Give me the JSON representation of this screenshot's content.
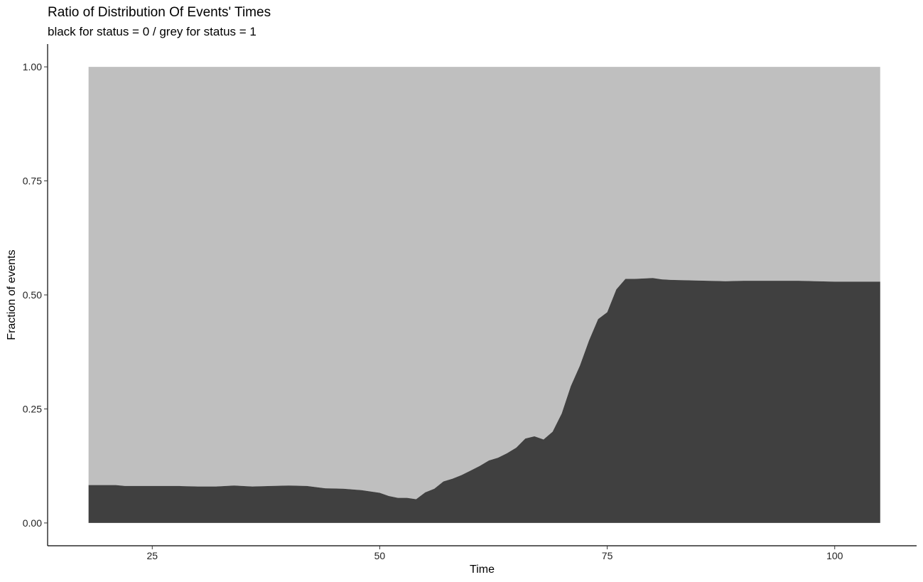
{
  "chart_data": {
    "type": "area",
    "stacking": "fill",
    "title": "Ratio of Distribution Of Events' Times",
    "subtitle": "black for status = 0 / grey for status = 1",
    "xlabel": "Time",
    "ylabel": "Fraction of events",
    "xlim": [
      13.5,
      109
    ],
    "ylim": [
      -0.05,
      1.05
    ],
    "x_ticks": [
      25,
      50,
      75,
      100
    ],
    "x_tick_labels": [
      "25",
      "50",
      "75",
      "100"
    ],
    "y_ticks": [
      0,
      0.25,
      0.5,
      0.75,
      1.0
    ],
    "y_tick_labels": [
      "0.00",
      "0.25",
      "0.50",
      "0.75",
      "1.00"
    ],
    "grid": false,
    "legend": "none",
    "colors": {
      "status_0": "#404040",
      "status_1": "#bfbfbf"
    },
    "x": [
      18,
      21,
      22,
      24,
      26,
      28,
      30,
      32,
      34,
      36,
      38,
      40,
      42,
      44,
      46,
      48,
      50,
      51,
      52,
      53,
      54,
      55,
      56,
      57,
      58,
      59,
      60,
      61,
      62,
      63,
      64,
      65,
      66,
      67,
      68,
      69,
      70,
      71,
      72,
      73,
      74,
      75,
      76,
      77,
      78,
      80,
      81,
      82,
      84,
      86,
      88,
      90,
      92,
      94,
      96,
      98,
      100,
      102,
      105
    ],
    "series": [
      {
        "status": 0,
        "values": [
          0.083,
          0.083,
          0.081,
          0.081,
          0.081,
          0.081,
          0.08,
          0.08,
          0.082,
          0.08,
          0.081,
          0.082,
          0.081,
          0.076,
          0.075,
          0.072,
          0.066,
          0.059,
          0.055,
          0.055,
          0.052,
          0.067,
          0.075,
          0.091,
          0.097,
          0.105,
          0.115,
          0.125,
          0.137,
          0.143,
          0.153,
          0.165,
          0.185,
          0.19,
          0.183,
          0.2,
          0.24,
          0.3,
          0.345,
          0.4,
          0.447,
          0.462,
          0.512,
          0.535,
          0.535,
          0.537,
          0.534,
          0.533,
          0.532,
          0.531,
          0.53,
          0.531,
          0.531,
          0.531,
          0.531,
          0.53,
          0.529,
          0.529,
          0.529
        ]
      },
      {
        "status": 1,
        "values": [
          0.917,
          0.917,
          0.919,
          0.919,
          0.919,
          0.919,
          0.92,
          0.92,
          0.918,
          0.92,
          0.919,
          0.918,
          0.919,
          0.924,
          0.925,
          0.928,
          0.934,
          0.941,
          0.945,
          0.945,
          0.948,
          0.933,
          0.925,
          0.909,
          0.903,
          0.895,
          0.885,
          0.875,
          0.863,
          0.857,
          0.847,
          0.835,
          0.815,
          0.81,
          0.817,
          0.8,
          0.76,
          0.7,
          0.655,
          0.6,
          0.553,
          0.538,
          0.488,
          0.465,
          0.465,
          0.463,
          0.466,
          0.467,
          0.468,
          0.469,
          0.47,
          0.469,
          0.469,
          0.469,
          0.469,
          0.47,
          0.471,
          0.471,
          0.471
        ]
      }
    ]
  }
}
